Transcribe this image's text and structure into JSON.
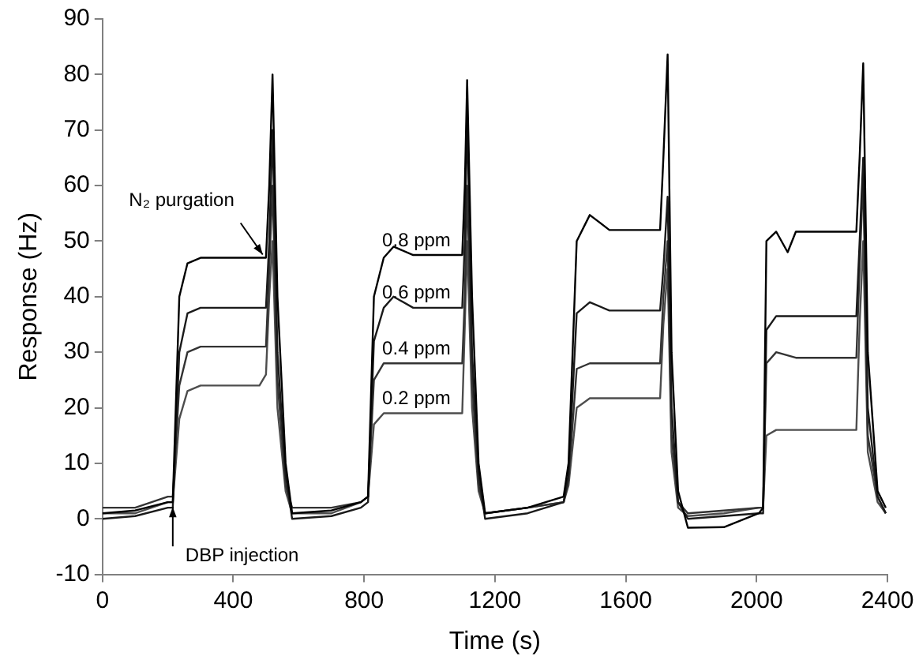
{
  "chart_data": {
    "type": "line",
    "xlabel": "Time (s)",
    "ylabel": "Response (Hz)",
    "xlim": [
      0,
      2400
    ],
    "xticks": [
      0,
      400,
      800,
      1200,
      1600,
      2000,
      2400
    ],
    "ylim": [
      -10,
      90
    ],
    "yticks": [
      -10,
      0,
      10,
      20,
      30,
      40,
      50,
      60,
      70,
      80,
      90
    ],
    "grid": false,
    "legend": false,
    "marker": "none",
    "line_style": "solid",
    "annotations": [
      {
        "text": "N₂ purgation",
        "x": 490,
        "y": 47
      },
      {
        "text": "DBP injection",
        "x": 215,
        "y": 3
      }
    ],
    "series": [
      {
        "name": "0.8 ppm",
        "color": "#000000",
        "x": [
          0,
          100,
          200,
          215,
          235,
          260,
          300,
          400,
          500,
          510,
          520,
          535,
          560,
          580,
          700,
          790,
          812,
          830,
          860,
          890,
          950,
          1100,
          1108,
          1115,
          1130,
          1150,
          1170,
          1300,
          1410,
          1425,
          1450,
          1490,
          1550,
          1705,
          1715,
          1728,
          1740,
          1760,
          1790,
          1900,
          2007,
          2020,
          2030,
          2060,
          2095,
          2120,
          2305,
          2315,
          2326,
          2340,
          2370,
          2395
        ],
        "values": [
          1,
          1.5,
          3,
          3,
          40,
          46,
          47,
          47,
          47,
          60,
          80,
          40,
          10,
          1,
          1.5,
          3,
          4,
          40,
          47,
          49,
          47.5,
          47.5,
          60,
          79,
          40,
          10,
          1,
          2,
          4,
          10,
          50,
          54.7,
          52,
          52,
          65,
          83.6,
          30,
          5,
          -1.6,
          -1.5,
          1,
          2,
          50,
          51.7,
          48,
          51.7,
          51.7,
          65,
          82,
          30,
          5,
          2
        ]
      },
      {
        "name": "0.6 ppm",
        "color": "#1a1a1a",
        "x": [
          0,
          100,
          200,
          215,
          235,
          260,
          300,
          400,
          500,
          510,
          520,
          535,
          560,
          580,
          700,
          790,
          812,
          830,
          860,
          890,
          950,
          1100,
          1108,
          1115,
          1130,
          1150,
          1170,
          1300,
          1410,
          1425,
          1450,
          1490,
          1550,
          1705,
          1715,
          1728,
          1740,
          1760,
          1790,
          1900,
          2007,
          2020,
          2030,
          2060,
          2120,
          2305,
          2315,
          2326,
          2340,
          2370,
          2395
        ],
        "values": [
          0,
          0.5,
          2,
          2,
          30,
          37,
          38,
          38,
          38,
          50,
          70,
          30,
          8,
          0,
          0.5,
          2,
          3,
          32,
          38,
          40,
          38,
          38,
          50,
          73,
          30,
          8,
          0,
          1,
          3,
          8,
          37,
          39,
          37.5,
          37.5,
          45,
          58,
          20,
          3,
          0,
          0.5,
          1,
          1,
          34,
          36.5,
          36.5,
          36.5,
          50,
          65,
          20,
          4,
          1
        ]
      },
      {
        "name": "0.4 ppm",
        "color": "#333333",
        "x": [
          0,
          100,
          200,
          215,
          235,
          260,
          300,
          400,
          500,
          510,
          520,
          535,
          560,
          580,
          700,
          790,
          812,
          830,
          860,
          890,
          950,
          1100,
          1108,
          1115,
          1130,
          1150,
          1170,
          1300,
          1410,
          1425,
          1450,
          1490,
          1550,
          1705,
          1715,
          1728,
          1740,
          1760,
          1790,
          1900,
          2007,
          2020,
          2030,
          2060,
          2120,
          2305,
          2315,
          2326,
          2340,
          2370,
          2395
        ],
        "values": [
          2,
          2,
          4,
          4,
          24,
          30,
          31,
          31,
          31,
          45,
          60,
          25,
          6,
          2,
          2,
          3,
          4,
          25,
          28,
          28,
          28,
          28,
          40,
          60,
          25,
          6,
          1,
          2,
          3,
          7,
          27,
          28,
          28,
          28,
          40,
          50,
          15,
          3,
          1,
          1.5,
          2,
          2,
          28,
          30,
          29,
          29,
          45,
          62,
          15,
          4,
          1
        ]
      },
      {
        "name": "0.2 ppm",
        "color": "#4d4d4d",
        "x": [
          0,
          100,
          200,
          215,
          235,
          260,
          300,
          400,
          480,
          500,
          510,
          520,
          535,
          560,
          580,
          700,
          790,
          812,
          830,
          860,
          890,
          950,
          1100,
          1108,
          1115,
          1130,
          1150,
          1170,
          1300,
          1410,
          1425,
          1450,
          1490,
          1550,
          1705,
          1715,
          1728,
          1740,
          1760,
          1790,
          1900,
          2007,
          2020,
          2030,
          2060,
          2120,
          2305,
          2315,
          2326,
          2340,
          2370,
          2395
        ],
        "values": [
          1,
          1,
          3,
          3,
          18,
          23,
          24,
          24,
          24,
          26,
          40,
          50,
          20,
          5,
          1,
          1,
          3,
          4,
          17,
          19,
          19,
          19,
          19,
          35,
          50,
          20,
          5,
          1,
          2,
          3,
          6,
          20,
          21.7,
          21.7,
          21.7,
          35,
          45,
          12,
          2,
          0.5,
          1,
          2,
          2,
          15,
          16,
          16,
          16,
          35,
          50,
          12,
          3,
          1
        ]
      }
    ]
  }
}
